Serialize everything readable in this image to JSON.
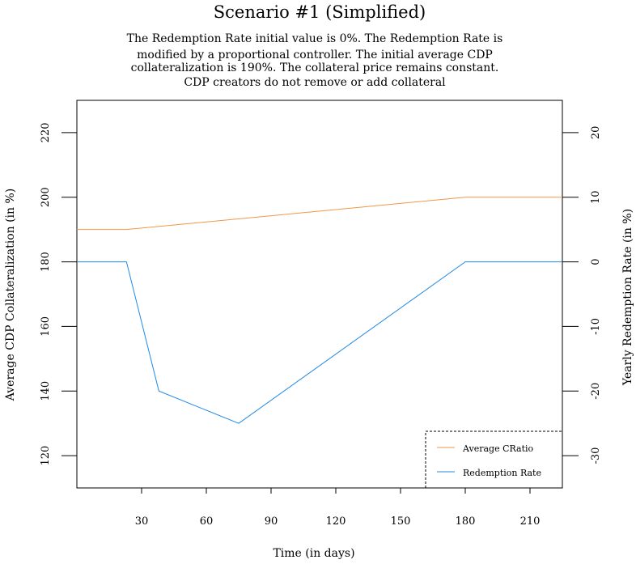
{
  "chart_data": {
    "type": "line",
    "title": "Scenario #1 (Simplified)",
    "subtitle_lines": [
      "The Redemption Rate initial value is 0%. The Redemption Rate is",
      "modified by a proportional controller. The initial average CDP",
      "collateralization is 190%. The collateral price remains constant.",
      "CDP creators do not remove or add collateral"
    ],
    "xlabel": "Time (in days)",
    "ylabel_left": "Average CDP Collateralization (in %)",
    "ylabel_right": "Yearly Redemption Rate (in %)",
    "xlim": [
      0,
      225
    ],
    "ylim_left": [
      110,
      230
    ],
    "ylim_right": [
      -35,
      25
    ],
    "x_ticks": [
      "30",
      "60",
      "90",
      "120",
      "150",
      "180",
      "210"
    ],
    "y_left_ticks": [
      "120",
      "140",
      "160",
      "180",
      "200",
      "220"
    ],
    "y_right_ticks": [
      "-30",
      "-20",
      "-10",
      "0",
      "10",
      "20"
    ],
    "grid": false,
    "legend_position": "bottom-right",
    "series": [
      {
        "name": "Average CRatio",
        "axis": "left",
        "color": "#f0974a",
        "x": [
          0,
          23,
          180,
          225
        ],
        "y": [
          190,
          190,
          200,
          200
        ]
      },
      {
        "name": "Redemption Rate",
        "axis": "right",
        "color": "#1f8ae6",
        "x": [
          0,
          23,
          38,
          75,
          180,
          225
        ],
        "y": [
          0,
          0,
          -20,
          -25,
          0,
          0
        ]
      }
    ]
  }
}
